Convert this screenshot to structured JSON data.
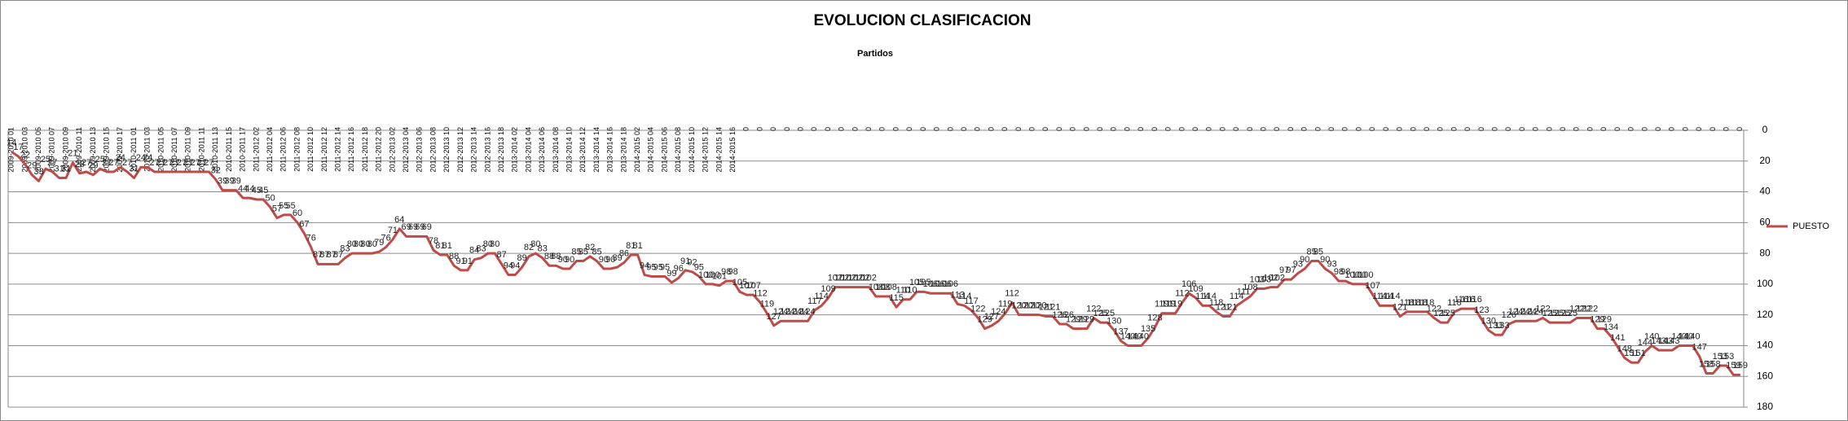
{
  "chart_data": {
    "type": "line",
    "title": "EVOLUCION CLASIFICACION",
    "subtitle": "Partidos",
    "categories": [
      "2009-2010 01",
      null,
      "2009-2010 03",
      null,
      "2009-2010 05",
      null,
      "2009-2010 07",
      null,
      "2009-2010 09",
      null,
      "2009-2010 11",
      null,
      "2009-2010 13",
      null,
      "2009-2010 15",
      null,
      "2009-2010 17",
      null,
      "2010-2011 01",
      null,
      "2010-2011 03",
      null,
      "2010-2011 05",
      null,
      "2010-2011 07",
      null,
      "2010-2011 09",
      null,
      "2010-2011 11",
      null,
      "2010-2011 13",
      null,
      "2010-2011 15",
      null,
      "2010-2011 17",
      null,
      "2011-2012 02",
      null,
      "2011-2012 04",
      null,
      "2011-2012 06",
      null,
      "2011-2012 08",
      null,
      "2011-2012 10",
      null,
      "2011-2012 12",
      null,
      "2011-2012 14",
      null,
      "2011-2012 16",
      null,
      "2011-2012 18",
      null,
      "2011-2012 20",
      null,
      "2012-2013 02",
      null,
      "2012-2013 04",
      null,
      "2012-2013 06",
      null,
      "2012-2013 08",
      null,
      "2012-2013 10",
      null,
      "2012-2013 12",
      null,
      "2012-2013 14",
      null,
      "2012-2013 16",
      null,
      "2012-2013 18",
      null,
      "2013-2014 02",
      null,
      "2013-2014 04",
      null,
      "2013-2014 06",
      null,
      "2013-2014 08",
      null,
      "2013-2014 10",
      null,
      "2013-2014 12",
      null,
      "2013-2014 14",
      null,
      "2013-2014 16",
      null,
      "2013-2014 18",
      null,
      "2014-2015 02",
      null,
      "2014-2015 04",
      null,
      "2014-2015 06",
      null,
      "2014-2015 08",
      null,
      "2014-2015 10",
      null,
      "2014-2015 12",
      null,
      "2014-2015 14",
      null,
      "2014-2015 16",
      null,
      "0",
      null,
      "0",
      null,
      "0",
      null,
      "0",
      null,
      "0",
      null,
      "0",
      null,
      "0",
      null,
      "0",
      null,
      "0",
      null,
      "0",
      null,
      "0",
      null,
      "0",
      null,
      "0",
      null,
      "0",
      null,
      "0",
      null,
      "0",
      null,
      "0",
      null,
      "0",
      null,
      "0",
      null,
      "0",
      null,
      "0",
      null,
      "0",
      null,
      "0",
      null,
      "0",
      null,
      "0",
      null,
      "0",
      null,
      "0",
      null,
      "0",
      null,
      "0",
      null,
      "0",
      null,
      "0",
      null,
      "0",
      null,
      "0",
      null,
      "0",
      null,
      "0",
      null,
      "0",
      null,
      "0",
      null,
      "0",
      null,
      "0",
      null,
      "0",
      null,
      "0",
      null,
      "0",
      null,
      "0",
      null,
      "0",
      null,
      "0",
      null,
      "0",
      null,
      "0",
      null,
      "0",
      null,
      "0",
      null,
      "0",
      null,
      "0",
      null,
      "0",
      null,
      "0",
      null,
      "0",
      null,
      "0",
      null,
      "0",
      null,
      "0",
      null,
      "0",
      null,
      "0",
      null,
      "0",
      null,
      "0",
      null,
      "0",
      null,
      "0",
      null,
      "0",
      null,
      "0",
      null,
      "0",
      null,
      "0",
      null,
      "0",
      null,
      "0",
      null,
      "0",
      null,
      "0",
      null,
      "0",
      null,
      "0",
      null,
      "0"
    ],
    "series": [
      {
        "name": "PUESTO",
        "color": "#be4b48",
        "values": [
          14,
          17,
          22,
          29,
          33,
          25,
          27,
          31,
          31,
          21,
          28,
          27,
          29,
          25,
          27,
          27,
          24,
          27,
          31,
          24,
          24,
          27,
          27,
          27,
          27,
          27,
          27,
          27,
          27,
          27,
          32,
          39,
          39,
          39,
          44,
          44,
          45,
          45,
          50,
          57,
          55,
          55,
          60,
          67,
          76,
          87,
          87,
          87,
          87,
          83,
          80,
          80,
          80,
          80,
          79,
          76,
          71,
          64,
          69,
          69,
          69,
          69,
          78,
          81,
          81,
          88,
          91,
          91,
          84,
          83,
          80,
          80,
          87,
          94,
          94,
          89,
          82,
          80,
          83,
          88,
          88,
          90,
          90,
          85,
          85,
          82,
          85,
          90,
          90,
          89,
          86,
          81,
          81,
          94,
          95,
          95,
          95,
          99,
          96,
          91,
          92,
          95,
          100,
          100,
          101,
          98,
          98,
          105,
          107,
          107,
          112,
          119,
          127,
          124,
          124,
          124,
          124,
          124,
          117,
          114,
          109,
          102,
          102,
          102,
          102,
          102,
          102,
          108,
          108,
          108,
          115,
          110,
          110,
          105,
          105,
          106,
          106,
          106,
          106,
          113,
          114,
          117,
          122,
          129,
          127,
          124,
          119,
          112,
          120,
          120,
          120,
          120,
          121,
          121,
          126,
          126,
          129,
          129,
          129,
          122,
          125,
          125,
          130,
          137,
          140,
          140,
          140,
          135,
          128,
          119,
          119,
          119,
          112,
          106,
          109,
          114,
          114,
          118,
          121,
          121,
          114,
          111,
          108,
          103,
          103,
          102,
          102,
          97,
          97,
          93,
          90,
          85,
          85,
          90,
          93,
          98,
          98,
          100,
          100,
          100,
          107,
          114,
          114,
          114,
          121,
          118,
          118,
          118,
          118,
          122,
          125,
          125,
          118,
          116,
          116,
          116,
          123,
          130,
          133,
          133,
          126,
          124,
          124,
          124,
          124,
          122,
          125,
          125,
          125,
          125,
          122,
          122,
          122,
          129,
          129,
          134,
          141,
          148,
          151,
          151,
          144,
          140,
          143,
          143,
          143,
          140,
          140,
          140,
          147,
          158,
          158,
          153,
          153,
          159,
          159
        ]
      }
    ],
    "ylim": [
      0,
      180
    ],
    "yticks": [
      0,
      20,
      40,
      60,
      80,
      100,
      120,
      140,
      160,
      180
    ],
    "y_inverted": true,
    "y_axis_side": "right",
    "grid": true,
    "legend": "right"
  }
}
